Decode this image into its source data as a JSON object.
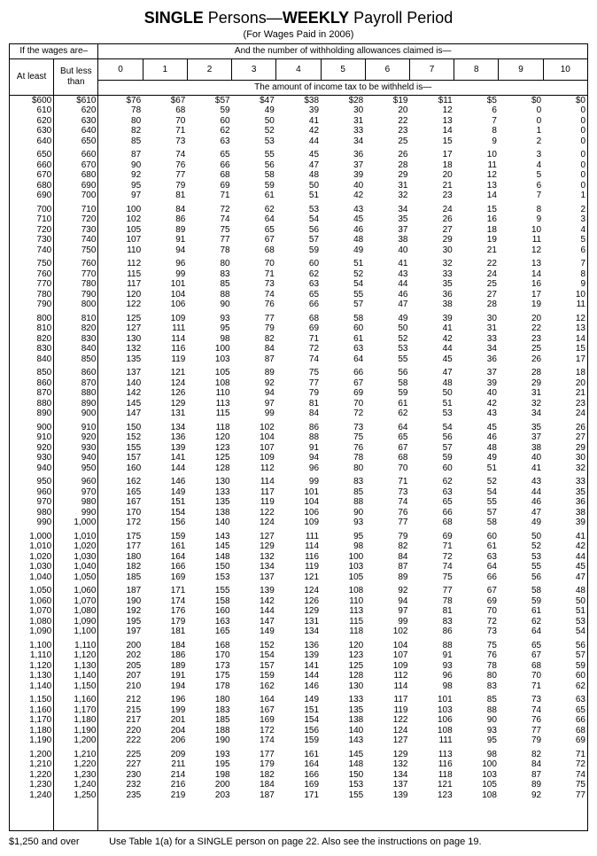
{
  "title": {
    "single": "SINGLE",
    "persons": " Persons—",
    "weekly": "WEEKLY",
    "period": " Payroll Period"
  },
  "subtitle": "(For Wages Paid in 2006)",
  "headers": {
    "wages_are": "If the wages are–",
    "allowances_claimed": "And the number of withholding allowances claimed is—",
    "at_least": "At least",
    "but_less_than": "But less than",
    "allowance_nums": [
      "0",
      "1",
      "2",
      "3",
      "4",
      "5",
      "6",
      "7",
      "8",
      "9",
      "10"
    ],
    "amount_withheld": "The amount of income tax to be withheld is—"
  },
  "groups": [
    [
      [
        "$600",
        "$610",
        "$76",
        "$67",
        "$57",
        "$47",
        "$38",
        "$28",
        "$19",
        "$11",
        "$5",
        "$0",
        "$0"
      ],
      [
        "610",
        "620",
        "78",
        "68",
        "59",
        "49",
        "39",
        "30",
        "20",
        "12",
        "6",
        "0",
        "0"
      ],
      [
        "620",
        "630",
        "80",
        "70",
        "60",
        "50",
        "41",
        "31",
        "22",
        "13",
        "7",
        "0",
        "0"
      ],
      [
        "630",
        "640",
        "82",
        "71",
        "62",
        "52",
        "42",
        "33",
        "23",
        "14",
        "8",
        "1",
        "0"
      ],
      [
        "640",
        "650",
        "85",
        "73",
        "63",
        "53",
        "44",
        "34",
        "25",
        "15",
        "9",
        "2",
        "0"
      ]
    ],
    [
      [
        "650",
        "660",
        "87",
        "74",
        "65",
        "55",
        "45",
        "36",
        "26",
        "17",
        "10",
        "3",
        "0"
      ],
      [
        "660",
        "670",
        "90",
        "76",
        "66",
        "56",
        "47",
        "37",
        "28",
        "18",
        "11",
        "4",
        "0"
      ],
      [
        "670",
        "680",
        "92",
        "77",
        "68",
        "58",
        "48",
        "39",
        "29",
        "20",
        "12",
        "5",
        "0"
      ],
      [
        "680",
        "690",
        "95",
        "79",
        "69",
        "59",
        "50",
        "40",
        "31",
        "21",
        "13",
        "6",
        "0"
      ],
      [
        "690",
        "700",
        "97",
        "81",
        "71",
        "61",
        "51",
        "42",
        "32",
        "23",
        "14",
        "7",
        "1"
      ]
    ],
    [
      [
        "700",
        "710",
        "100",
        "84",
        "72",
        "62",
        "53",
        "43",
        "34",
        "24",
        "15",
        "8",
        "2"
      ],
      [
        "710",
        "720",
        "102",
        "86",
        "74",
        "64",
        "54",
        "45",
        "35",
        "26",
        "16",
        "9",
        "3"
      ],
      [
        "720",
        "730",
        "105",
        "89",
        "75",
        "65",
        "56",
        "46",
        "37",
        "27",
        "18",
        "10",
        "4"
      ],
      [
        "730",
        "740",
        "107",
        "91",
        "77",
        "67",
        "57",
        "48",
        "38",
        "29",
        "19",
        "11",
        "5"
      ],
      [
        "740",
        "750",
        "110",
        "94",
        "78",
        "68",
        "59",
        "49",
        "40",
        "30",
        "21",
        "12",
        "6"
      ]
    ],
    [
      [
        "750",
        "760",
        "112",
        "96",
        "80",
        "70",
        "60",
        "51",
        "41",
        "32",
        "22",
        "13",
        "7"
      ],
      [
        "760",
        "770",
        "115",
        "99",
        "83",
        "71",
        "62",
        "52",
        "43",
        "33",
        "24",
        "14",
        "8"
      ],
      [
        "770",
        "780",
        "117",
        "101",
        "85",
        "73",
        "63",
        "54",
        "44",
        "35",
        "25",
        "16",
        "9"
      ],
      [
        "780",
        "790",
        "120",
        "104",
        "88",
        "74",
        "65",
        "55",
        "46",
        "36",
        "27",
        "17",
        "10"
      ],
      [
        "790",
        "800",
        "122",
        "106",
        "90",
        "76",
        "66",
        "57",
        "47",
        "38",
        "28",
        "19",
        "11"
      ]
    ],
    [
      [
        "800",
        "810",
        "125",
        "109",
        "93",
        "77",
        "68",
        "58",
        "49",
        "39",
        "30",
        "20",
        "12"
      ],
      [
        "810",
        "820",
        "127",
        "111",
        "95",
        "79",
        "69",
        "60",
        "50",
        "41",
        "31",
        "22",
        "13"
      ],
      [
        "820",
        "830",
        "130",
        "114",
        "98",
        "82",
        "71",
        "61",
        "52",
        "42",
        "33",
        "23",
        "14"
      ],
      [
        "830",
        "840",
        "132",
        "116",
        "100",
        "84",
        "72",
        "63",
        "53",
        "44",
        "34",
        "25",
        "15"
      ],
      [
        "840",
        "850",
        "135",
        "119",
        "103",
        "87",
        "74",
        "64",
        "55",
        "45",
        "36",
        "26",
        "17"
      ]
    ],
    [
      [
        "850",
        "860",
        "137",
        "121",
        "105",
        "89",
        "75",
        "66",
        "56",
        "47",
        "37",
        "28",
        "18"
      ],
      [
        "860",
        "870",
        "140",
        "124",
        "108",
        "92",
        "77",
        "67",
        "58",
        "48",
        "39",
        "29",
        "20"
      ],
      [
        "870",
        "880",
        "142",
        "126",
        "110",
        "94",
        "79",
        "69",
        "59",
        "50",
        "40",
        "31",
        "21"
      ],
      [
        "880",
        "890",
        "145",
        "129",
        "113",
        "97",
        "81",
        "70",
        "61",
        "51",
        "42",
        "32",
        "23"
      ],
      [
        "890",
        "900",
        "147",
        "131",
        "115",
        "99",
        "84",
        "72",
        "62",
        "53",
        "43",
        "34",
        "24"
      ]
    ],
    [
      [
        "900",
        "910",
        "150",
        "134",
        "118",
        "102",
        "86",
        "73",
        "64",
        "54",
        "45",
        "35",
        "26"
      ],
      [
        "910",
        "920",
        "152",
        "136",
        "120",
        "104",
        "88",
        "75",
        "65",
        "56",
        "46",
        "37",
        "27"
      ],
      [
        "920",
        "930",
        "155",
        "139",
        "123",
        "107",
        "91",
        "76",
        "67",
        "57",
        "48",
        "38",
        "29"
      ],
      [
        "930",
        "940",
        "157",
        "141",
        "125",
        "109",
        "94",
        "78",
        "68",
        "59",
        "49",
        "40",
        "30"
      ],
      [
        "940",
        "950",
        "160",
        "144",
        "128",
        "112",
        "96",
        "80",
        "70",
        "60",
        "51",
        "41",
        "32"
      ]
    ],
    [
      [
        "950",
        "960",
        "162",
        "146",
        "130",
        "114",
        "99",
        "83",
        "71",
        "62",
        "52",
        "43",
        "33"
      ],
      [
        "960",
        "970",
        "165",
        "149",
        "133",
        "117",
        "101",
        "85",
        "73",
        "63",
        "54",
        "44",
        "35"
      ],
      [
        "970",
        "980",
        "167",
        "151",
        "135",
        "119",
        "104",
        "88",
        "74",
        "65",
        "55",
        "46",
        "36"
      ],
      [
        "980",
        "990",
        "170",
        "154",
        "138",
        "122",
        "106",
        "90",
        "76",
        "66",
        "57",
        "47",
        "38"
      ],
      [
        "990",
        "1,000",
        "172",
        "156",
        "140",
        "124",
        "109",
        "93",
        "77",
        "68",
        "58",
        "49",
        "39"
      ]
    ],
    [
      [
        "1,000",
        "1,010",
        "175",
        "159",
        "143",
        "127",
        "111",
        "95",
        "79",
        "69",
        "60",
        "50",
        "41"
      ],
      [
        "1,010",
        "1,020",
        "177",
        "161",
        "145",
        "129",
        "114",
        "98",
        "82",
        "71",
        "61",
        "52",
        "42"
      ],
      [
        "1,020",
        "1,030",
        "180",
        "164",
        "148",
        "132",
        "116",
        "100",
        "84",
        "72",
        "63",
        "53",
        "44"
      ],
      [
        "1,030",
        "1,040",
        "182",
        "166",
        "150",
        "134",
        "119",
        "103",
        "87",
        "74",
        "64",
        "55",
        "45"
      ],
      [
        "1,040",
        "1,050",
        "185",
        "169",
        "153",
        "137",
        "121",
        "105",
        "89",
        "75",
        "66",
        "56",
        "47"
      ]
    ],
    [
      [
        "1,050",
        "1,060",
        "187",
        "171",
        "155",
        "139",
        "124",
        "108",
        "92",
        "77",
        "67",
        "58",
        "48"
      ],
      [
        "1,060",
        "1,070",
        "190",
        "174",
        "158",
        "142",
        "126",
        "110",
        "94",
        "78",
        "69",
        "59",
        "50"
      ],
      [
        "1,070",
        "1,080",
        "192",
        "176",
        "160",
        "144",
        "129",
        "113",
        "97",
        "81",
        "70",
        "61",
        "51"
      ],
      [
        "1,080",
        "1,090",
        "195",
        "179",
        "163",
        "147",
        "131",
        "115",
        "99",
        "83",
        "72",
        "62",
        "53"
      ],
      [
        "1,090",
        "1,100",
        "197",
        "181",
        "165",
        "149",
        "134",
        "118",
        "102",
        "86",
        "73",
        "64",
        "54"
      ]
    ],
    [
      [
        "1,100",
        "1,110",
        "200",
        "184",
        "168",
        "152",
        "136",
        "120",
        "104",
        "88",
        "75",
        "65",
        "56"
      ],
      [
        "1,110",
        "1,120",
        "202",
        "186",
        "170",
        "154",
        "139",
        "123",
        "107",
        "91",
        "76",
        "67",
        "57"
      ],
      [
        "1,120",
        "1,130",
        "205",
        "189",
        "173",
        "157",
        "141",
        "125",
        "109",
        "93",
        "78",
        "68",
        "59"
      ],
      [
        "1,130",
        "1,140",
        "207",
        "191",
        "175",
        "159",
        "144",
        "128",
        "112",
        "96",
        "80",
        "70",
        "60"
      ],
      [
        "1,140",
        "1,150",
        "210",
        "194",
        "178",
        "162",
        "146",
        "130",
        "114",
        "98",
        "83",
        "71",
        "62"
      ]
    ],
    [
      [
        "1,150",
        "1,160",
        "212",
        "196",
        "180",
        "164",
        "149",
        "133",
        "117",
        "101",
        "85",
        "73",
        "63"
      ],
      [
        "1,160",
        "1,170",
        "215",
        "199",
        "183",
        "167",
        "151",
        "135",
        "119",
        "103",
        "88",
        "74",
        "65"
      ],
      [
        "1,170",
        "1,180",
        "217",
        "201",
        "185",
        "169",
        "154",
        "138",
        "122",
        "106",
        "90",
        "76",
        "66"
      ],
      [
        "1,180",
        "1,190",
        "220",
        "204",
        "188",
        "172",
        "156",
        "140",
        "124",
        "108",
        "93",
        "77",
        "68"
      ],
      [
        "1,190",
        "1,200",
        "222",
        "206",
        "190",
        "174",
        "159",
        "143",
        "127",
        "111",
        "95",
        "79",
        "69"
      ]
    ],
    [
      [
        "1,200",
        "1,210",
        "225",
        "209",
        "193",
        "177",
        "161",
        "145",
        "129",
        "113",
        "98",
        "82",
        "71"
      ],
      [
        "1,210",
        "1,220",
        "227",
        "211",
        "195",
        "179",
        "164",
        "148",
        "132",
        "116",
        "100",
        "84",
        "72"
      ],
      [
        "1,220",
        "1,230",
        "230",
        "214",
        "198",
        "182",
        "166",
        "150",
        "134",
        "118",
        "103",
        "87",
        "74"
      ],
      [
        "1,230",
        "1,240",
        "232",
        "216",
        "200",
        "184",
        "169",
        "153",
        "137",
        "121",
        "105",
        "89",
        "75"
      ],
      [
        "1,240",
        "1,250",
        "235",
        "219",
        "203",
        "187",
        "171",
        "155",
        "139",
        "123",
        "108",
        "92",
        "77"
      ]
    ]
  ],
  "footer": {
    "left": "$1,250 and over",
    "right": "Use Table 1(a) for a SINGLE person on page 22. Also see the instructions on page 19."
  }
}
